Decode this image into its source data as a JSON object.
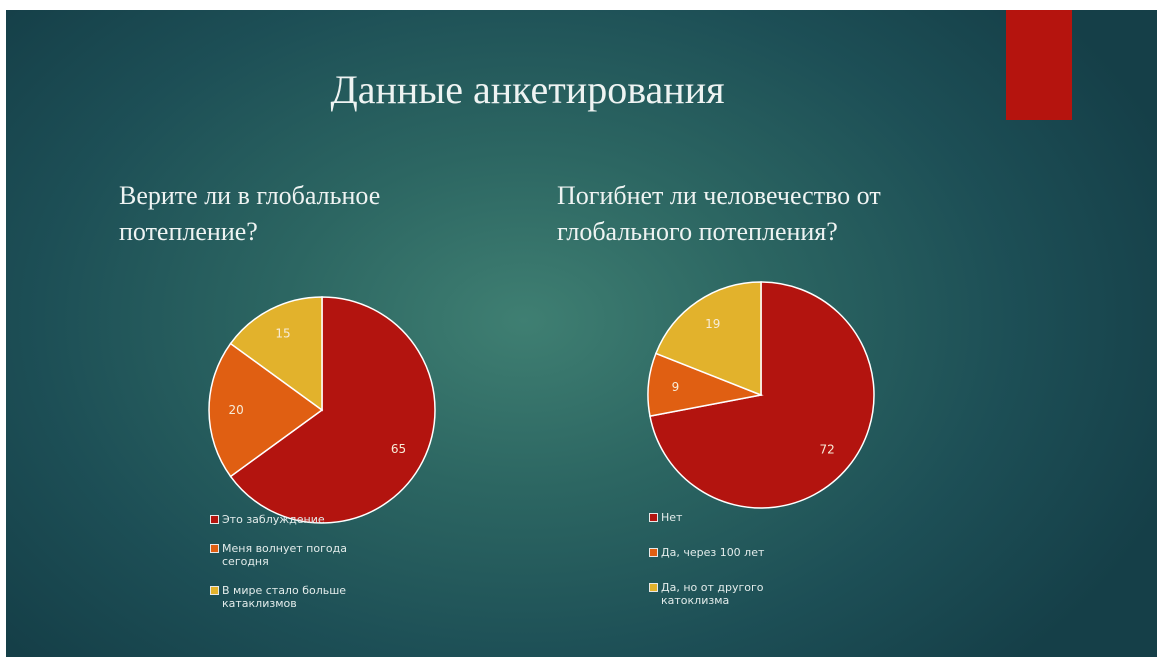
{
  "slide": {
    "title": "Данные анкетирования",
    "accent_color": "#b5140e"
  },
  "chart_data": [
    {
      "type": "pie",
      "title": "Верите ли в глобальное потепление?",
      "categories": [
        "Это заблуждение",
        "Меня волнует погода сегодня",
        "В мире стало больше катаклизмов"
      ],
      "values": [
        65,
        20,
        15
      ],
      "data_labels": [
        "65",
        "20",
        "15"
      ],
      "colors": [
        "#b3140f",
        "#e05f12",
        "#e2b22c"
      ],
      "legend": "bottom"
    },
    {
      "type": "pie",
      "title": "Погибнет ли человечество от глобального потепления?",
      "categories": [
        "Нет",
        "Да, через 100 лет",
        "Да, но от другого катоклизма"
      ],
      "values": [
        72,
        9,
        19
      ],
      "data_labels": [
        "72",
        "9",
        "19"
      ],
      "colors": [
        "#b3140f",
        "#e05f12",
        "#e2b22c"
      ],
      "legend": "bottom"
    }
  ]
}
